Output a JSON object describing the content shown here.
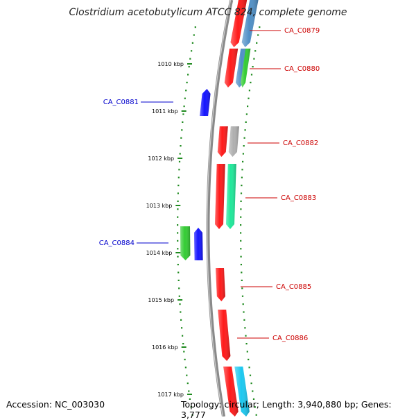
{
  "title": "Clostridium acetobutylicum ATCC 824, complete genome",
  "accession": "Accession: NC_003030",
  "topology": "Topology: circular; Length: 3,940,880 bp; Genes: 3,777",
  "colors": {
    "backbone": "#8a8a8a",
    "ruler": "#1f8a1f",
    "red": "#ff1a1a",
    "blue": "#1414ff",
    "green": "#33cc33",
    "steelblue": "#4f8fc6",
    "gray": "#b0b0b0",
    "springgreen": "#1fe89a",
    "skyblue": "#1cc8f0",
    "label_right": "#cc0000",
    "label_left": "#0000cc"
  },
  "ticks": [
    {
      "label": "1010 kbp"
    },
    {
      "label": "1011 kbp"
    },
    {
      "label": "1012 kbp"
    },
    {
      "label": "1013 kbp"
    },
    {
      "label": "1014 kbp"
    },
    {
      "label": "1015 kbp"
    },
    {
      "label": "1016 kbp"
    },
    {
      "label": "1017 kbp"
    }
  ],
  "genes": [
    {
      "label": "CA_C0879",
      "strand": "+"
    },
    {
      "label": "CA_C0880",
      "strand": "+"
    },
    {
      "label": "CA_C0881",
      "strand": "-"
    },
    {
      "label": "CA_C0882",
      "strand": "+"
    },
    {
      "label": "CA_C0883",
      "strand": "+"
    },
    {
      "label": "CA_C0884",
      "strand": "-"
    },
    {
      "label": "CA_C0885",
      "strand": "+"
    },
    {
      "label": "CA_C0886",
      "strand": "+"
    }
  ]
}
